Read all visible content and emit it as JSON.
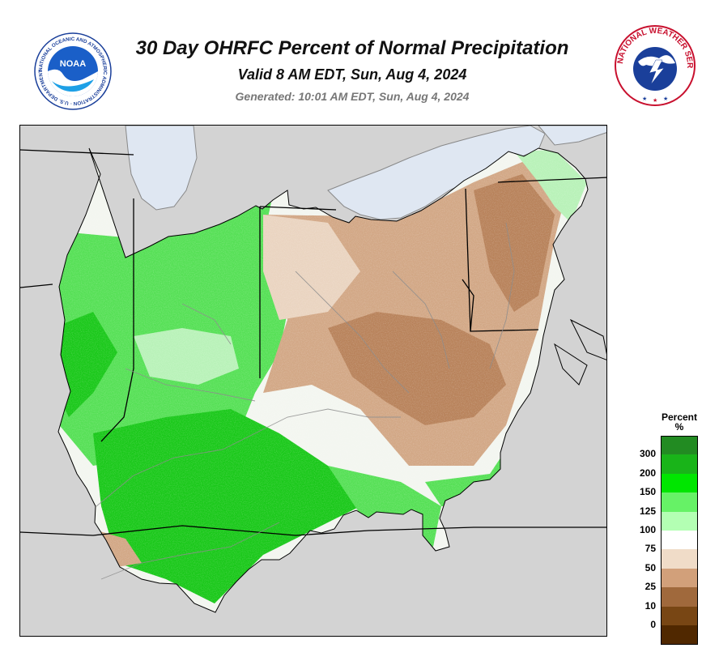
{
  "header": {
    "title": "30 Day OHRFC Percent of Normal Precipitation",
    "valid": "Valid 8 AM EDT, Sun, Aug 4, 2024",
    "generated": "Generated: 10:01 AM EDT, Sun, Aug 4, 2024"
  },
  "logos": {
    "noaa_text": "NOAA",
    "noaa_ring": "NATIONAL OCEANIC AND ATMOSPHERIC ADMINISTRATION · U.S. DEPARTMENT OF COMMERCE ·",
    "nws_ring": "NATIONAL WEATHER SERVICE"
  },
  "legend": {
    "title_line1": "Percent",
    "title_line2": "%",
    "ticks": [
      "300",
      "200",
      "150",
      "125",
      "100",
      "75",
      "50",
      "25",
      "10",
      "0"
    ],
    "colors": [
      "#228b22",
      "#19b419",
      "#00e600",
      "#66f266",
      "#b3ffb3",
      "#ffffff",
      "#f0dcc8",
      "#d2a07a",
      "#a0693c",
      "#784614",
      "#502800"
    ]
  },
  "map_colors": {
    "background": "#d3d3d3",
    "lake": "#dfe7f2",
    "dry_strong": "#b8825a",
    "dry": "#d2a785",
    "dry_light": "#ead4c0",
    "normal": "#f3f6f0",
    "wet_light": "#b8f2b8",
    "wet": "#55e055",
    "wet_strong": "#19c819"
  }
}
